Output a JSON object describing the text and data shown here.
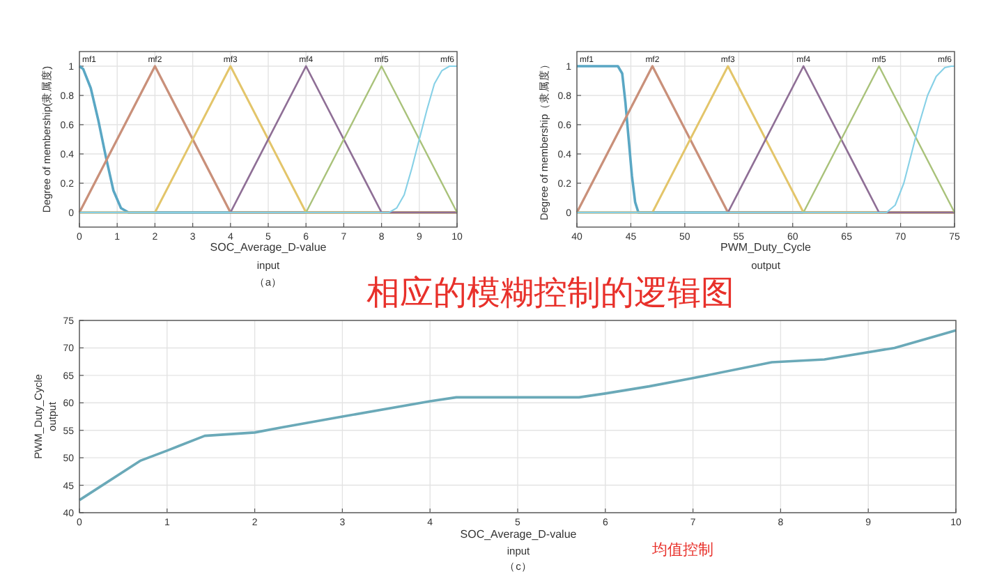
{
  "chart_data": [
    {
      "type": "line",
      "xlabel": "SOC_Average_D-value",
      "ylabel": "Degree of membership(隶属度)",
      "annotations": [
        "input",
        "（a）"
      ],
      "xlim": [
        0,
        10
      ],
      "xticks": [
        0,
        1,
        2,
        3,
        4,
        5,
        6,
        7,
        8,
        9,
        10
      ],
      "ylim": [
        -0.1,
        1.1
      ],
      "yticks": [
        0,
        0.2,
        0.4,
        0.6,
        0.8,
        1
      ],
      "grid": true,
      "series": [
        {
          "name": "mf1",
          "color": "#5aa7c4",
          "x": [
            0,
            0.1,
            0.3,
            0.5,
            0.7,
            0.9,
            1.1,
            1.3,
            10
          ],
          "values": [
            1,
            0.98,
            0.85,
            0.63,
            0.38,
            0.15,
            0.03,
            0,
            0
          ]
        },
        {
          "name": "mf2",
          "color": "#c9907a",
          "x": [
            0,
            2,
            4,
            10
          ],
          "values": [
            0,
            1,
            0,
            0
          ]
        },
        {
          "name": "mf3",
          "color": "#e3c56a",
          "x": [
            0,
            2,
            4,
            6,
            10
          ],
          "values": [
            0,
            0,
            1,
            0,
            0
          ]
        },
        {
          "name": "mf4",
          "color": "#8f6f96",
          "x": [
            0,
            4,
            6,
            8,
            10
          ],
          "values": [
            0,
            0,
            1,
            0,
            0
          ]
        },
        {
          "name": "mf5",
          "color": "#a9c27a",
          "x": [
            0,
            6,
            8,
            10
          ],
          "values": [
            0,
            0,
            1,
            0
          ]
        },
        {
          "name": "mf6",
          "color": "#86d0e6",
          "x": [
            0,
            8.2,
            8.4,
            8.6,
            8.8,
            9,
            9.2,
            9.4,
            9.6,
            9.8,
            10
          ],
          "values": [
            0,
            0,
            0.03,
            0.12,
            0.3,
            0.5,
            0.7,
            0.88,
            0.97,
            1,
            1
          ]
        }
      ]
    },
    {
      "type": "line",
      "xlabel": "PWM_Duty_Cycle",
      "ylabel": "Degree of membership（隶属度）",
      "annotations": [
        "output"
      ],
      "xlim": [
        40,
        75
      ],
      "xticks": [
        40,
        45,
        50,
        55,
        60,
        65,
        70,
        75
      ],
      "ylim": [
        -0.1,
        1.1
      ],
      "yticks": [
        0,
        0.2,
        0.4,
        0.6,
        0.8,
        1
      ],
      "grid": true,
      "series": [
        {
          "name": "mf1",
          "color": "#5aa7c4",
          "x": [
            40,
            43.8,
            44.2,
            44.5,
            44.8,
            45.1,
            45.4,
            45.7,
            75
          ],
          "values": [
            1,
            1,
            0.95,
            0.75,
            0.5,
            0.25,
            0.07,
            0,
            0
          ]
        },
        {
          "name": "mf2",
          "color": "#c9907a",
          "x": [
            40,
            47,
            54,
            75
          ],
          "values": [
            0,
            1,
            0,
            0
          ]
        },
        {
          "name": "mf3",
          "color": "#e3c56a",
          "x": [
            40,
            47,
            54,
            61,
            75
          ],
          "values": [
            0,
            0,
            1,
            0,
            0
          ]
        },
        {
          "name": "mf4",
          "color": "#8f6f96",
          "x": [
            40,
            54,
            61,
            68,
            75
          ],
          "values": [
            0,
            0,
            1,
            0,
            0
          ]
        },
        {
          "name": "mf5",
          "color": "#a9c27a",
          "x": [
            40,
            61,
            68,
            75
          ],
          "values": [
            0,
            0,
            1,
            0
          ]
        },
        {
          "name": "mf6",
          "color": "#86d0e6",
          "x": [
            40,
            68.7,
            69.5,
            70.3,
            71,
            71.7,
            72.5,
            73.3,
            74.1,
            74.7,
            75
          ],
          "values": [
            0,
            0,
            0.05,
            0.2,
            0.4,
            0.6,
            0.8,
            0.93,
            0.99,
            1,
            1
          ]
        }
      ]
    },
    {
      "type": "line",
      "title": "相应的模糊控制的逻辑图",
      "xlabel": "SOC_Average_D-value",
      "ylabel": "PWM_Duty_Cycle",
      "annotations": [
        "output",
        "input",
        "（c）",
        "均值控制"
      ],
      "xlim": [
        0,
        10
      ],
      "xticks": [
        0,
        1,
        2,
        3,
        4,
        5,
        6,
        7,
        8,
        9,
        10
      ],
      "ylim": [
        40,
        75
      ],
      "yticks": [
        40,
        45,
        50,
        55,
        60,
        65,
        70,
        75
      ],
      "grid": true,
      "series": [
        {
          "color": "#6aa9b8",
          "x": [
            0,
            0.7,
            1,
            1.43,
            2,
            2.3,
            3,
            4,
            4.3,
            5.7,
            6,
            6.5,
            7,
            7.9,
            8.5,
            9.3,
            10
          ],
          "values": [
            42.3,
            49.5,
            51.3,
            54,
            54.6,
            55.5,
            57.5,
            60.3,
            61,
            61,
            61.7,
            63,
            64.5,
            67.4,
            67.9,
            70,
            73.2
          ]
        }
      ]
    }
  ]
}
